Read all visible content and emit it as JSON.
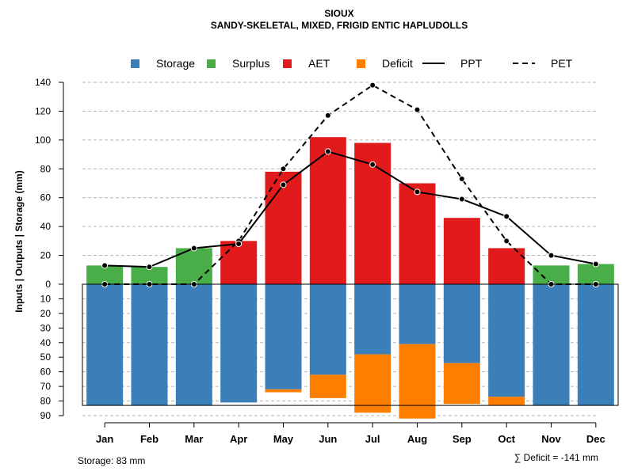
{
  "chart_data": {
    "type": "bar",
    "title": "SIOUX",
    "subtitle": "SANDY-SKELETAL, MIXED, FRIGID ENTIC HAPLUDOLLS",
    "ylabel": "Inputs | Outputs | Storage    (mm)",
    "categories": [
      "Jan",
      "Feb",
      "Mar",
      "Apr",
      "May",
      "Jun",
      "Jul",
      "Aug",
      "Sep",
      "Oct",
      "Nov",
      "Dec"
    ],
    "upper_ticks": [
      "0",
      "20",
      "40",
      "60",
      "80",
      "100",
      "120",
      "140"
    ],
    "lower_ticks": [
      "10",
      "20",
      "30",
      "40",
      "50",
      "60",
      "70",
      "80",
      "90"
    ],
    "ylim_upper": [
      0,
      140
    ],
    "ylim_lower": [
      0,
      90
    ],
    "legend": [
      {
        "name": "Storage",
        "color": "#3a7fba",
        "kind": "box"
      },
      {
        "name": "Surplus",
        "color": "#4aae48",
        "kind": "box"
      },
      {
        "name": "AET",
        "color": "#e11b1c",
        "kind": "box"
      },
      {
        "name": "Deficit",
        "color": "#fe7f00",
        "kind": "box"
      },
      {
        "name": "PPT",
        "color": "#000000",
        "kind": "line"
      },
      {
        "name": "PET",
        "color": "#000000",
        "kind": "dash"
      }
    ],
    "series": [
      {
        "name": "Surplus",
        "values": [
          13,
          12,
          25,
          0,
          0,
          0,
          0,
          0,
          0,
          0,
          13,
          14
        ]
      },
      {
        "name": "AET",
        "values": [
          0,
          0,
          0,
          30,
          78,
          102,
          98,
          70,
          46,
          25,
          0,
          0
        ]
      },
      {
        "name": "Storage",
        "values": [
          83,
          83,
          83,
          81,
          72,
          62,
          48,
          41,
          54,
          77,
          83,
          83
        ]
      },
      {
        "name": "Deficit",
        "values": [
          0,
          0,
          0,
          0,
          2,
          16,
          40,
          51,
          28,
          6,
          0,
          0
        ]
      },
      {
        "name": "PPT",
        "values": [
          13,
          12,
          25,
          28,
          69,
          92,
          83,
          64,
          59,
          47,
          20,
          14
        ]
      },
      {
        "name": "PET",
        "values": [
          0,
          0,
          0,
          30,
          80,
          117,
          138,
          121,
          73,
          30,
          0,
          0
        ]
      }
    ],
    "storage_capacity": 83,
    "footer_left": "Storage: 83 mm",
    "footer_right": "∑ Deficit = -141 mm"
  }
}
